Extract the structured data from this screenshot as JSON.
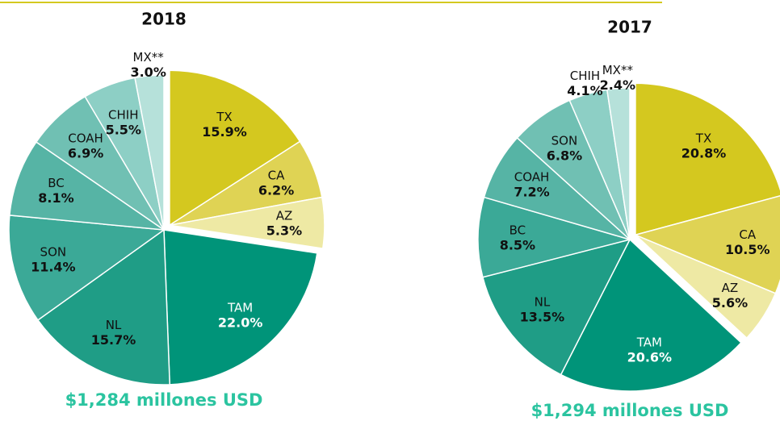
{
  "chart_data": [
    {
      "type": "pie",
      "title": "2018",
      "subtitle": "$1,284 millones USD",
      "categories": [
        "TX",
        "CA",
        "AZ",
        "TAM",
        "NL",
        "SON",
        "BC",
        "COAH",
        "CHIH",
        "MX**"
      ],
      "values": [
        15.9,
        6.2,
        5.3,
        22.0,
        15.7,
        11.4,
        8.1,
        6.9,
        5.5,
        3.0
      ],
      "value_labels": [
        "15.9%",
        "6.2%",
        "5.3%",
        "22.0%",
        "15.7%",
        "11.4%",
        "8.1%",
        "6.9%",
        "5.5%",
        "3.0%"
      ],
      "colors": [
        "#d4c81f",
        "#dfd354",
        "#eee9a4",
        "#009479",
        "#1f9d86",
        "#3ba997",
        "#56b4a5",
        "#70c0b3",
        "#8dcfc5",
        "#b6e1da"
      ]
    },
    {
      "type": "pie",
      "title": "2017",
      "subtitle": "$1,294 millones USD",
      "categories": [
        "TX",
        "CA",
        "AZ",
        "TAM",
        "NL",
        "BC",
        "COAH",
        "SON",
        "CHIH",
        "MX**"
      ],
      "values": [
        20.8,
        10.5,
        5.6,
        20.6,
        13.5,
        8.5,
        7.2,
        6.8,
        4.1,
        2.4
      ],
      "value_labels": [
        "20.8%",
        "10.5%",
        "5.6%",
        "20.6%",
        "13.5%",
        "8.5%",
        "7.2%",
        "6.8%",
        "4.1%",
        "2.4%"
      ],
      "colors": [
        "#d4c81f",
        "#dfd354",
        "#eee9a4",
        "#009479",
        "#1f9d86",
        "#3ba997",
        "#56b4a5",
        "#70c0b3",
        "#8dcfc5",
        "#b6e1da"
      ]
    }
  ]
}
